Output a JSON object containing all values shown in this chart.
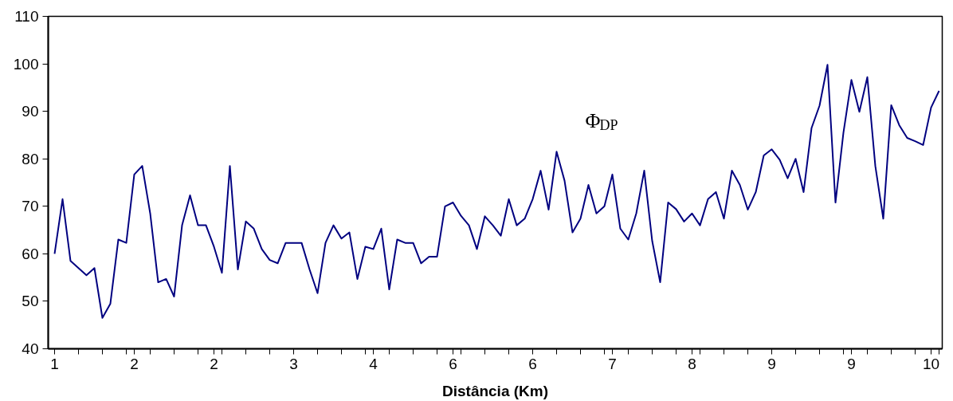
{
  "chart_data": {
    "type": "line",
    "xlabel": "Distância (Km)",
    "categories": [
      "1",
      null,
      null,
      null,
      null,
      null,
      null,
      null,
      null,
      null,
      "2",
      null,
      null,
      null,
      null,
      null,
      null,
      null,
      null,
      null,
      "2",
      null,
      null,
      null,
      null,
      null,
      null,
      null,
      null,
      null,
      "3",
      null,
      null,
      null,
      null,
      null,
      null,
      null,
      null,
      null,
      "4",
      null,
      null,
      null,
      null,
      null,
      null,
      null,
      null,
      null,
      "6",
      null,
      null,
      null,
      null,
      null,
      null,
      null,
      null,
      null,
      "6",
      null,
      null,
      null,
      null,
      null,
      null,
      null,
      null,
      null,
      "7",
      null,
      null,
      null,
      null,
      null,
      null,
      null,
      null,
      null,
      "8",
      null,
      null,
      null,
      null,
      null,
      null,
      null,
      null,
      null,
      "9",
      null,
      null,
      null,
      null,
      null,
      null,
      null,
      null,
      null,
      "9",
      null,
      null,
      null,
      null,
      null,
      null,
      null,
      null,
      null,
      "10",
      null
    ],
    "series": [
      {
        "color": "#000080",
        "values": [
          60,
          71.5,
          58.5,
          57,
          55.5,
          57,
          46.5,
          49.5,
          63,
          62.3,
          76.7,
          78.5,
          68.5,
          54,
          54.7,
          51,
          66,
          72.3,
          66,
          66,
          61.5,
          56,
          78.5,
          56.7,
          66.8,
          65.3,
          61,
          58.7,
          58,
          62.3,
          62.3,
          62.3,
          56.7,
          51.7,
          62.3,
          66,
          63.2,
          64.5,
          54.7,
          61.5,
          61,
          65.3,
          52.5,
          63,
          62.3,
          62.3,
          58,
          59.4,
          59.4,
          70,
          70.8,
          68,
          66,
          61,
          67.9,
          66,
          63.8,
          71.5,
          66,
          67.4,
          71.5,
          77.5,
          69.3,
          81.5,
          75.4,
          64.5,
          67.4,
          74.5,
          68.5,
          70,
          76.7,
          65.3,
          63,
          68.5,
          77.5,
          62.7,
          54,
          70.8,
          69.4,
          66.8,
          68.5,
          66,
          71.5,
          73,
          67.4,
          77.5,
          74.5,
          69.3,
          73,
          80.7,
          82,
          79.8,
          75.9,
          80,
          73,
          86.5,
          91.2,
          99.8,
          70.8,
          85.5,
          96.6,
          89.9,
          97.2,
          78.5,
          67.4,
          91.3,
          87.1,
          84.4,
          83.7,
          82.9,
          90.8,
          94.3
        ]
      }
    ],
    "ylim": [
      40,
      110
    ],
    "yticks": [
      40,
      50,
      60,
      70,
      80,
      90,
      100,
      110
    ],
    "grid": false,
    "marker": "none",
    "line_style": "solid",
    "annotations": [
      "Φ$_{DP}$"
    ]
  }
}
